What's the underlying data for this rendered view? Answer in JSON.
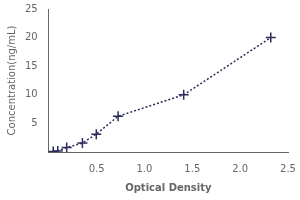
{
  "chart_data": {
    "type": "line",
    "xlabel": "Optical Density",
    "ylabel": "Concentration(ng/mL)",
    "x": [
      0.047,
      0.094,
      0.188,
      0.352,
      0.497,
      0.725,
      1.41,
      2.32
    ],
    "values": [
      0.098,
      0.195,
      0.781,
      1.563,
      3.125,
      6.25,
      10.0,
      20.0
    ],
    "color": "#2b2b5a",
    "marker": "+",
    "line_style": "dotted",
    "xlim": [
      0,
      2.5
    ],
    "ylim": [
      0,
      25
    ],
    "xticks": [
      0.5,
      {
        "value": 1,
        "label": "1.0"
      },
      1.5,
      {
        "value": 2,
        "label": "2.0"
      },
      2.5
    ],
    "yticks": [
      5,
      10,
      15,
      20,
      25
    ],
    "grid": false
  }
}
